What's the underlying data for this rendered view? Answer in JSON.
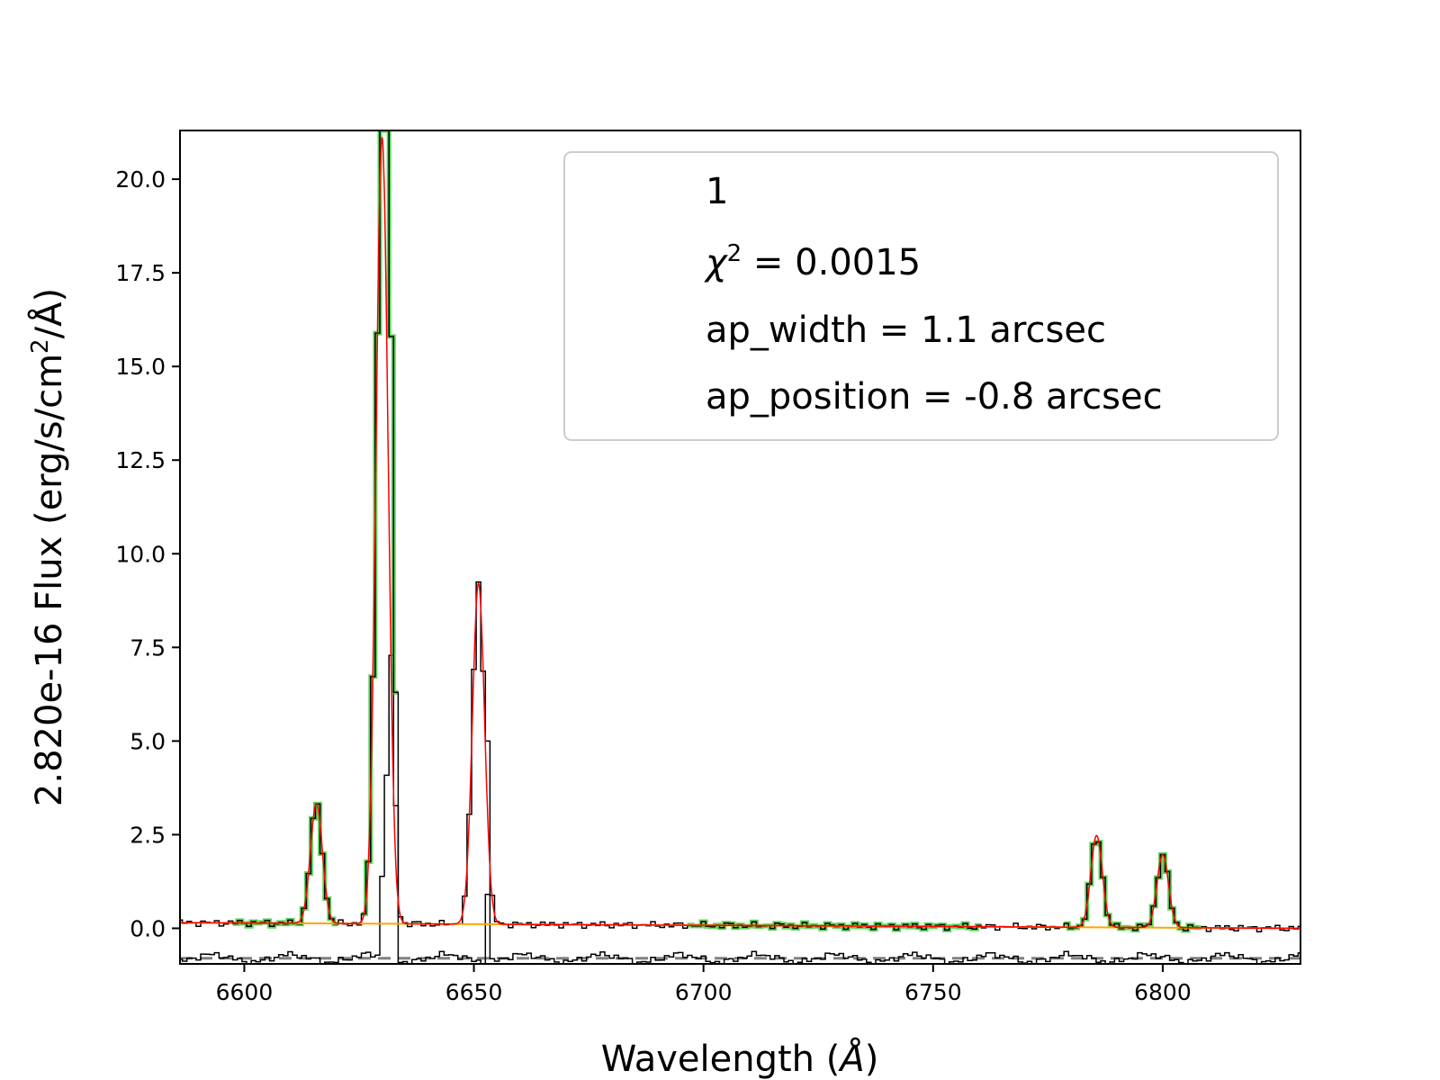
{
  "chart_data": {
    "type": "line",
    "xlabel_prefix": "Wavelength (",
    "xlabel_unit": "Å",
    "xlabel_suffix": ")",
    "ylabel_prefix": "2.820e-16  Flux (erg/s/cm",
    "ylabel_sup": "2",
    "ylabel_suffix": "/Å)",
    "xlim": [
      6586,
      6830
    ],
    "ylim": [
      -0.95,
      21.3
    ],
    "x_ticks": [
      {
        "value": 6600,
        "label": "6600"
      },
      {
        "value": 6650,
        "label": "6650"
      },
      {
        "value": 6700,
        "label": "6700"
      },
      {
        "value": 6750,
        "label": "6750"
      },
      {
        "value": 6800,
        "label": "6800"
      }
    ],
    "y_ticks": [
      {
        "value": 0.0,
        "label": "0.0"
      },
      {
        "value": 2.5,
        "label": "2.5"
      },
      {
        "value": 5.0,
        "label": "5.0"
      },
      {
        "value": 7.5,
        "label": "7.5"
      },
      {
        "value": 10.0,
        "label": "10.0"
      },
      {
        "value": 12.5,
        "label": "12.5"
      },
      {
        "value": 15.0,
        "label": "15.0"
      },
      {
        "value": 17.5,
        "label": "17.5"
      },
      {
        "value": 20.0,
        "label": "20.0"
      }
    ],
    "grid": false,
    "legend": {
      "placement": "top-right",
      "title": "1",
      "chi_symbol": "χ",
      "chi_sup": "2",
      "chi_rest": " = 0.0015",
      "line3": "ap_width = 1.1 arcsec",
      "line4": "ap_position = -0.8 arcsec"
    },
    "continuum": {
      "x": [
        6586,
        6830
      ],
      "y": [
        0.15,
        0.0
      ]
    },
    "zero_line_y": -0.8,
    "emission_lines": [
      {
        "center": 6615.7,
        "amplitude": 3.2,
        "sigma": 1.3
      },
      {
        "center": 6630.0,
        "amplitude": 21.0,
        "sigma": 1.32
      },
      {
        "center": 6651.0,
        "amplitude": 9.1,
        "sigma": 1.32
      },
      {
        "center": 6785.6,
        "amplitude": 2.45,
        "sigma": 1.25
      },
      {
        "center": 6800.0,
        "amplitude": 1.95,
        "sigma": 1.25
      }
    ],
    "data_overrides": [
      {
        "x": 6630.0,
        "y": 23.5
      },
      {
        "x": 6631.0,
        "y": 21.3
      },
      {
        "x": 6632.0,
        "y": 15.8
      },
      {
        "x": 6633.0,
        "y": 6.3
      },
      {
        "x": 6651.5,
        "y": 9.6
      },
      {
        "x": 6653.0,
        "y": 5.0
      }
    ],
    "green_ranges": [
      [
        6598,
        6620
      ],
      [
        6626,
        6633
      ],
      [
        6697,
        6760
      ],
      [
        6779,
        6808
      ]
    ],
    "series": [
      {
        "key": "data",
        "color": "#000000"
      },
      {
        "key": "fit_regions",
        "color": "#33cc33"
      },
      {
        "key": "model",
        "color": "#ff0000"
      },
      {
        "key": "continuum",
        "color": "#ffa500"
      },
      {
        "key": "residual",
        "color": "#000000"
      },
      {
        "key": "zero_level",
        "color": "#808080"
      }
    ]
  }
}
